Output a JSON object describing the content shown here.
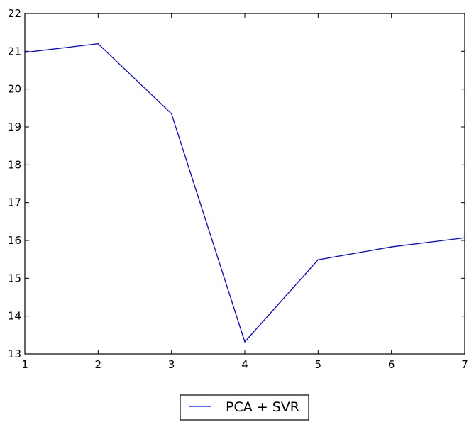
{
  "chart_data": {
    "type": "line",
    "title": "",
    "xlabel": "",
    "ylabel": "",
    "x": [
      1,
      2,
      3,
      4,
      5,
      6,
      7
    ],
    "series": [
      {
        "name": "PCA + SVR",
        "color": "#0000ff",
        "values": [
          20.97,
          21.2,
          19.35,
          13.32,
          15.49,
          15.83,
          16.07
        ]
      }
    ],
    "xlim": [
      1,
      7
    ],
    "ylim": [
      13,
      22
    ],
    "xticks": [
      "1",
      "2",
      "3",
      "4",
      "5",
      "6",
      "7"
    ],
    "yticks": [
      "13",
      "14",
      "15",
      "16",
      "17",
      "18",
      "19",
      "20",
      "21",
      "22"
    ],
    "grid": false,
    "legend_position": "bottom-center"
  }
}
